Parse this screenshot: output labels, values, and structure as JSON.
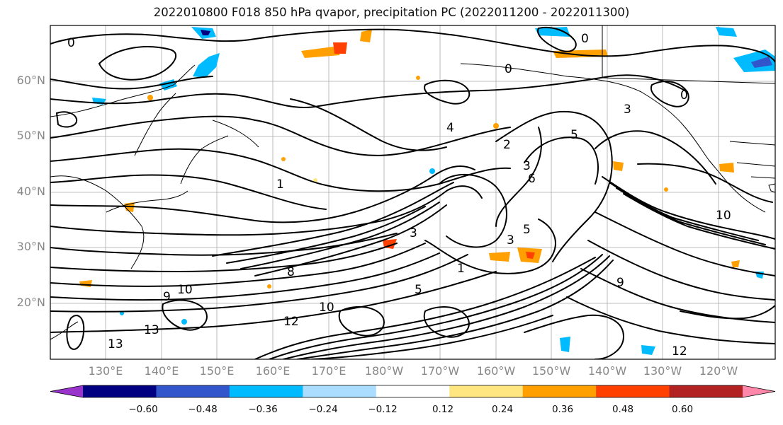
{
  "title": "2022010800 F018 850 hPa qvapor, precipitation PC (2022011200 - 2022011300)",
  "lat_labels": [
    "60°N",
    "50°N",
    "40°N",
    "30°N",
    "20°N"
  ],
  "lon_labels": [
    "130°E",
    "140°E",
    "150°E",
    "160°E",
    "170°E",
    "180°W",
    "170°W",
    "160°W",
    "150°W",
    "140°W",
    "130°W",
    "120°W"
  ],
  "colorbar": {
    "labels": [
      "−0.60",
      "−0.48",
      "−0.36",
      "−0.24",
      "−0.12",
      "0.12",
      "0.24",
      "0.36",
      "0.48",
      "0.60"
    ],
    "colors": [
      "#9933cc",
      "#000080",
      "#3355cc",
      "#00bbff",
      "#aaddff",
      "#ffffff",
      "#ffe680",
      "#ffa000",
      "#ff4000",
      "#b22222",
      "#ff88aa"
    ]
  },
  "contour_labels": [
    "0",
    "0",
    "0",
    "0",
    "1",
    "1",
    "2",
    "3",
    "3",
    "3",
    "3",
    "4",
    "5",
    "5",
    "5",
    "6",
    "8",
    "9",
    "9",
    "10",
    "10",
    "10",
    "12",
    "12",
    "13",
    "13"
  ]
}
